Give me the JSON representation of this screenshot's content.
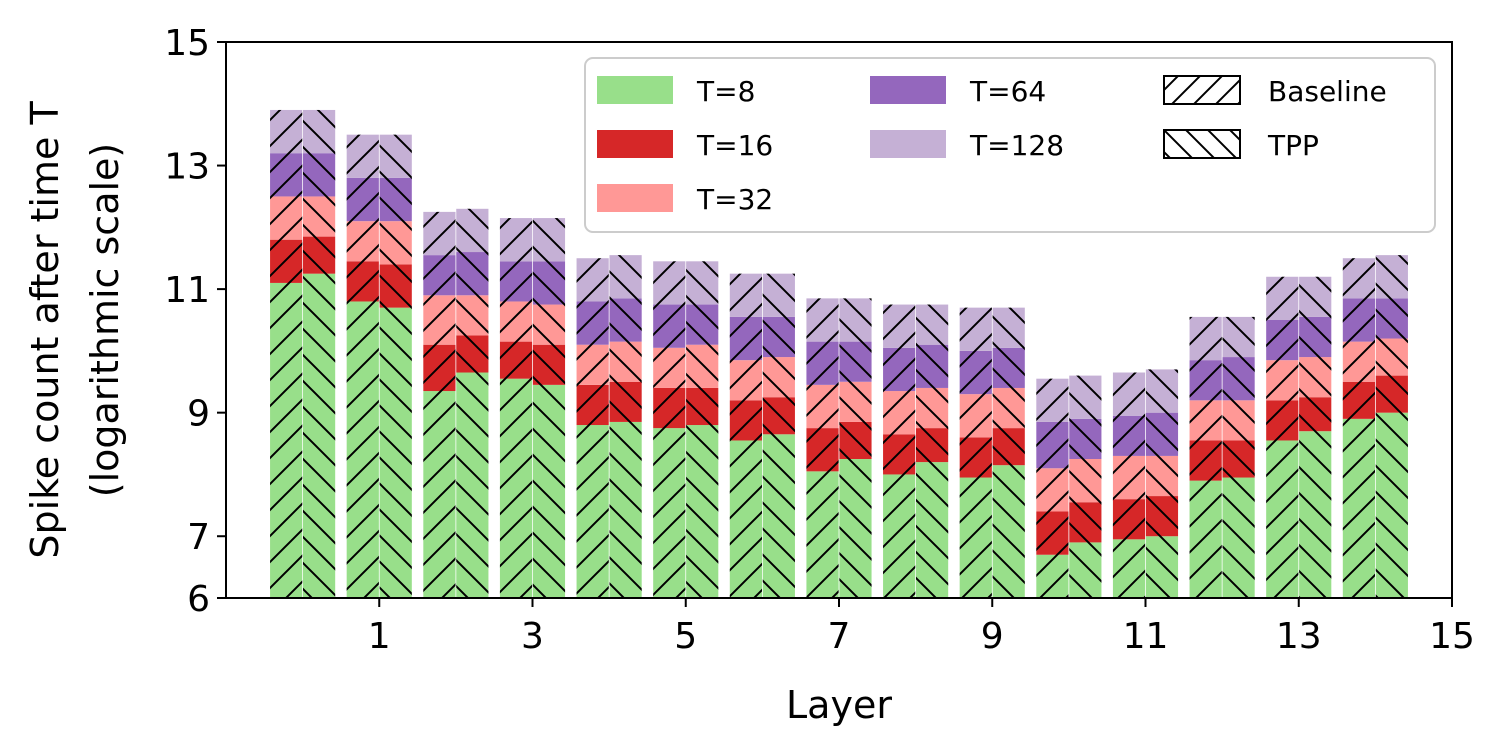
{
  "chart_data": {
    "type": "bar",
    "stacked": true,
    "xlabel": "Layer",
    "ylabel_line1": "Spike count after time T",
    "ylabel_line2": "(logarithmic scale)",
    "xlim": [
      -1,
      15
    ],
    "ylim": [
      6,
      15
    ],
    "xticks": [
      "1",
      "3",
      "5",
      "7",
      "9",
      "11",
      "13",
      "15"
    ],
    "yticks": [
      "6",
      "7",
      "9",
      "11",
      "13",
      "15"
    ],
    "legend_position": "top-right",
    "layers": [
      0,
      1,
      2,
      3,
      4,
      5,
      6,
      7,
      8,
      9,
      10,
      11,
      12,
      13,
      14
    ],
    "series": [
      {
        "name": "T=8",
        "color": "#98df8a"
      },
      {
        "name": "T=16",
        "color": "#d62728"
      },
      {
        "name": "T=32",
        "color": "#ff9896"
      },
      {
        "name": "T=64",
        "color": "#9467bd"
      },
      {
        "name": "T=128",
        "color": "#c5b0d5"
      }
    ],
    "methods": [
      {
        "name": "Baseline",
        "hatch": "forward",
        "values": [
          [
            11.1,
            11.8,
            12.5,
            13.2,
            13.9
          ],
          [
            10.8,
            11.45,
            12.1,
            12.8,
            13.5
          ],
          [
            9.35,
            10.1,
            10.9,
            11.55,
            12.25
          ],
          [
            9.55,
            10.15,
            10.8,
            11.45,
            12.15
          ],
          [
            8.8,
            9.45,
            10.1,
            10.8,
            11.5
          ],
          [
            8.75,
            9.4,
            10.05,
            10.75,
            11.45
          ],
          [
            8.55,
            9.2,
            9.85,
            10.55,
            11.25
          ],
          [
            8.05,
            8.75,
            9.45,
            10.15,
            10.85
          ],
          [
            8.0,
            8.65,
            9.35,
            10.05,
            10.75
          ],
          [
            7.95,
            8.6,
            9.3,
            10.0,
            10.7
          ],
          [
            6.7,
            7.4,
            8.1,
            8.85,
            9.55
          ],
          [
            6.95,
            7.6,
            8.3,
            8.95,
            9.65
          ],
          [
            7.9,
            8.55,
            9.2,
            9.85,
            10.55
          ],
          [
            8.55,
            9.2,
            9.85,
            10.5,
            11.2
          ],
          [
            8.9,
            9.5,
            10.15,
            10.85,
            11.5
          ]
        ]
      },
      {
        "name": "TPP",
        "hatch": "backward",
        "values": [
          [
            11.25,
            11.85,
            12.5,
            13.2,
            13.9
          ],
          [
            10.7,
            11.4,
            12.1,
            12.8,
            13.5
          ],
          [
            9.65,
            10.25,
            10.9,
            11.6,
            12.3
          ],
          [
            9.45,
            10.1,
            10.75,
            11.45,
            12.15
          ],
          [
            8.85,
            9.5,
            10.15,
            10.85,
            11.55
          ],
          [
            8.8,
            9.4,
            10.1,
            10.75,
            11.45
          ],
          [
            8.65,
            9.25,
            9.9,
            10.55,
            11.25
          ],
          [
            8.25,
            8.85,
            9.5,
            10.15,
            10.85
          ],
          [
            8.2,
            8.75,
            9.4,
            10.1,
            10.75
          ],
          [
            8.15,
            8.75,
            9.4,
            10.05,
            10.7
          ],
          [
            6.9,
            7.55,
            8.25,
            8.9,
            9.6
          ],
          [
            7.0,
            7.65,
            8.3,
            9.0,
            9.7
          ],
          [
            7.95,
            8.55,
            9.2,
            9.9,
            10.55
          ],
          [
            8.7,
            9.25,
            9.9,
            10.55,
            11.2
          ],
          [
            9.0,
            9.6,
            10.2,
            10.85,
            11.55
          ]
        ]
      }
    ]
  }
}
